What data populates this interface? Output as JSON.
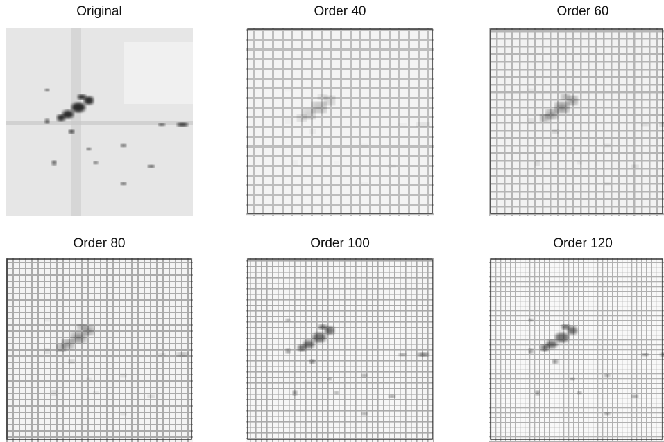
{
  "panels": [
    {
      "title": "Original"
    },
    {
      "title": "Order 40"
    },
    {
      "title": "Order 60"
    },
    {
      "title": "Order 80"
    },
    {
      "title": "Order 100"
    },
    {
      "title": "Order 120"
    }
  ]
}
